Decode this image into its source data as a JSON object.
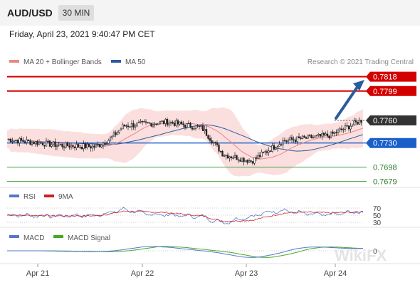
{
  "header": {
    "symbol": "AUD/USD",
    "timeframe": "30 MIN"
  },
  "datetime": "Friday, April 23, 2021 9:40:47 PM CET",
  "copyright": "Research © 2021 Trading Central",
  "watermark": "WikiFX",
  "colors": {
    "resistance": "#d40000",
    "support": "#1a5fc9",
    "lower_support": "#3aa03a",
    "price_now": "#333333",
    "arrow": "#2a5b9c",
    "ma20": "#e98686",
    "ma50": "#2a5b9c",
    "rsi": "#5577cc",
    "rsi_ma": "#cc2222",
    "macd": "#5577cc",
    "macd_signal": "#44aa22"
  },
  "chart_data": {
    "type": "line",
    "main": {
      "legend": [
        "MA 20 + Bollinger Bands",
        "MA 50"
      ],
      "levels": [
        {
          "label": "0.7818",
          "role": "resistance"
        },
        {
          "label": "0.7799",
          "role": "resistance"
        },
        {
          "label": "0.7760",
          "role": "price"
        },
        {
          "label": "0.7730",
          "role": "pivot"
        },
        {
          "label": "0.7698",
          "role": "support"
        },
        {
          "label": "0.7679",
          "role": "support"
        }
      ],
      "arrow": {
        "from": 0.776,
        "to": 0.781,
        "direction": "up"
      },
      "y_range": [
        0.7672,
        0.783
      ],
      "price_path_x": [
        0,
        0.15,
        0.25,
        0.29,
        0.33,
        0.45,
        0.55,
        0.61,
        0.69,
        0.78,
        0.91,
        1
      ],
      "price_path_y": [
        0.7735,
        0.7727,
        0.7725,
        0.7735,
        0.7753,
        0.7758,
        0.775,
        0.7715,
        0.7706,
        0.7733,
        0.774,
        0.776
      ]
    },
    "rsi": {
      "legend": [
        "RSI",
        "9MA"
      ],
      "ticks": [
        "70",
        "50",
        "30"
      ]
    },
    "macd": {
      "legend": [
        "MACD",
        "MACD Signal"
      ],
      "ticks": [
        "0"
      ]
    },
    "x_ticks": [
      "Apr 21",
      "Apr 22",
      "Apr 23",
      "Apr 24"
    ]
  }
}
